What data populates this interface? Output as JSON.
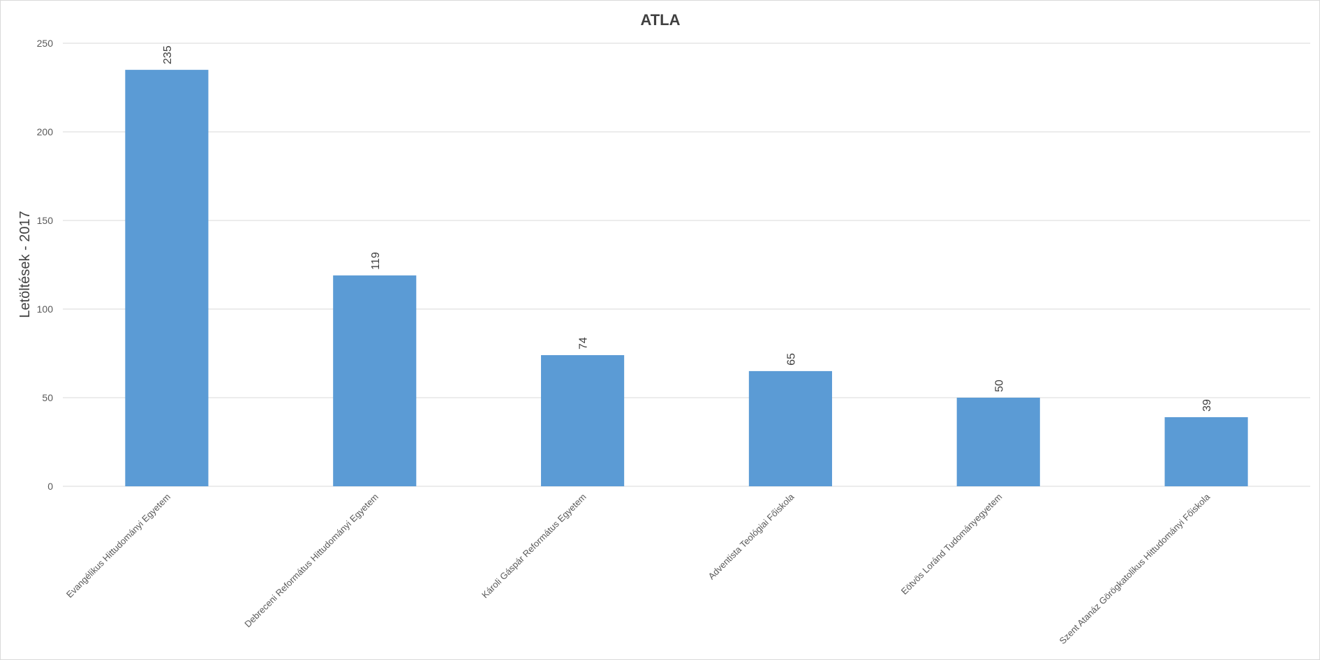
{
  "chart_data": {
    "type": "bar",
    "title": "ATLA",
    "xlabel": "",
    "ylabel": "Letöltések - 2017",
    "ylim": [
      0,
      250
    ],
    "yticks": [
      0,
      50,
      100,
      150,
      200,
      250
    ],
    "grid": true,
    "categories": [
      "Evangélikus Hittudományi Egyetem",
      "Debreceni Református Hittudományi Egyetem",
      "Károli Gáspár Református Egyetem",
      "Adventista Teológiai Főiskola",
      "Eötvös Loránd Tudományegyetem",
      "Szent Atanáz Görögkatolikus Hittudományi Főiskola"
    ],
    "values": [
      235,
      119,
      74,
      65,
      50,
      39
    ],
    "colors": {
      "bar": "#5b9bd5",
      "grid": "#d9d9d9"
    }
  }
}
